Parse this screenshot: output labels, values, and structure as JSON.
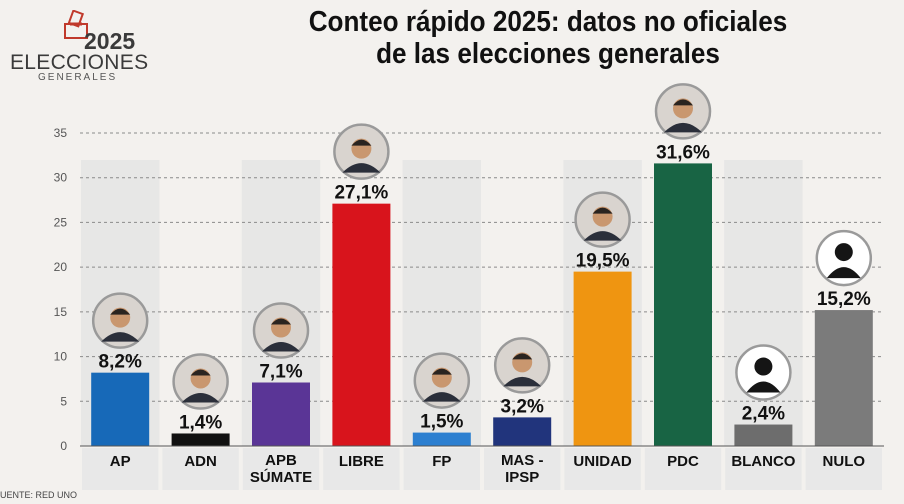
{
  "logo": {
    "year": "2025",
    "word": "ELECCIONES",
    "sub": "GENERALES"
  },
  "title_line1": "Conteo rápido 2025: datos no oficiales",
  "title_line2": "de las elecciones generales",
  "source": "UENTE: RED UNO",
  "colors": {
    "background": "#f3f1ee",
    "stripe": "#e3e3e3",
    "grid": "#8a8a8a",
    "label_box": "#e8e8e8"
  },
  "chart_data": {
    "type": "bar",
    "categories": [
      "AP",
      "ADN",
      "APB SÚMATE",
      "LIBRE",
      "FP",
      "MAS - IPSP",
      "UNIDAD",
      "PDC",
      "BLANCO",
      "NULO"
    ],
    "category_lines": [
      [
        "AP"
      ],
      [
        "ADN"
      ],
      [
        "APB",
        "SÚMATE"
      ],
      [
        "LIBRE"
      ],
      [
        "FP"
      ],
      [
        "MAS -",
        "IPSP"
      ],
      [
        "UNIDAD"
      ],
      [
        "PDC"
      ],
      [
        "BLANCO"
      ],
      [
        "NULO"
      ]
    ],
    "values": [
      8.2,
      1.4,
      7.1,
      27.1,
      1.5,
      3.2,
      19.5,
      31.6,
      2.4,
      15.2
    ],
    "data_labels": [
      "8,2%",
      "1,4%",
      "7,1%",
      "27,1%",
      "1,5%",
      "3,2%",
      "19,5%",
      "31,6%",
      "2,4%",
      "15,2%"
    ],
    "bar_colors": [
      "#1769b8",
      "#111111",
      "#5a3596",
      "#d8141c",
      "#2c7fd0",
      "#21347c",
      "#ef9511",
      "#186444",
      "#6d6d6d",
      "#7b7b7b"
    ],
    "photo_kind": [
      "person",
      "person",
      "person",
      "person",
      "person",
      "person",
      "person",
      "person",
      "silhouette",
      "silhouette"
    ],
    "ylim": [
      0,
      35
    ],
    "yticks": [
      0,
      5,
      10,
      15,
      20,
      25,
      30,
      35
    ],
    "grid": true,
    "xlabel": "",
    "ylabel": ""
  }
}
